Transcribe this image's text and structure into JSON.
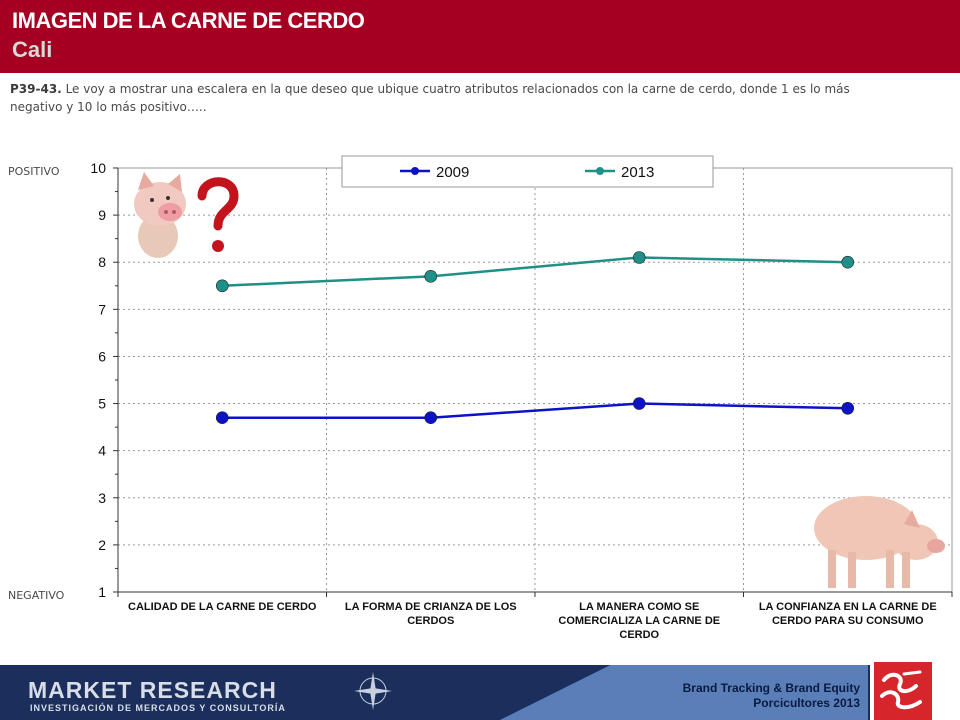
{
  "header": {
    "title": "IMAGEN DE LA CARNE DE CERDO",
    "subtitle": "Cali"
  },
  "question": {
    "code": "P39-43.",
    "text": "Le voy a mostrar una escalera en la que deseo que ubique cuatro atributos relacionados con la carne de cerdo, donde 1 es lo más negativo y 10 lo más positivo….."
  },
  "side_labels": {
    "top": "POSITIVO",
    "bottom": "NEGATIVO"
  },
  "colors": {
    "series_2009": "#0b12c8",
    "series_2013": "#1f8f88",
    "header": "#a50021"
  },
  "icons": {
    "pig_question": "pig-question-icon",
    "pig_standing": "pig-standing-icon",
    "compass": "compass-icon",
    "logo": "market-research-logo-icon"
  },
  "chart_data": {
    "type": "line",
    "categories": [
      [
        "CALIDAD DE LA CARNE DE CERDO"
      ],
      [
        "LA FORMA DE CRIANZA DE LOS",
        "CERDOS"
      ],
      [
        "LA MANERA COMO SE",
        "COMERCIALIZA LA CARNE DE",
        "CERDO"
      ],
      [
        "LA CONFIANZA EN LA CARNE DE",
        "CERDO PARA SU CONSUMO"
      ]
    ],
    "series": [
      {
        "name": "2009",
        "values": [
          4.7,
          4.7,
          5.0,
          4.9
        ]
      },
      {
        "name": "2013",
        "values": [
          7.5,
          7.7,
          8.1,
          8.0
        ]
      }
    ],
    "yticks": [
      1,
      2,
      3,
      4,
      5,
      6,
      7,
      8,
      9,
      10
    ],
    "ylim": [
      1,
      10
    ],
    "grid": true,
    "legend_position": "top-center"
  },
  "footer": {
    "brand": "MARKET RESEARCH",
    "brand_sub": "INVESTIGACIÓN DE MERCADOS Y CONSULTORÍA",
    "line1": "Brand Tracking & Brand Equity",
    "line2": "Porcicultores 2013"
  }
}
